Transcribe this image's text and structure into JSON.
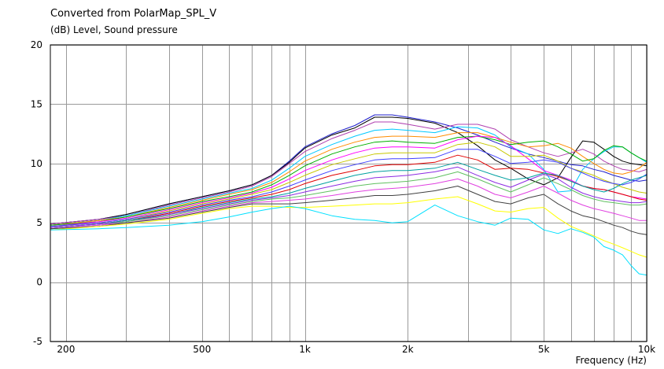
{
  "chart_data": {
    "type": "line",
    "title": "Converted from PolarMap_SPL_V",
    "ylabel": "(dB)  Level, Sound pressure",
    "xlabel": "Frequency  (Hz)",
    "x_scale": "log",
    "xlim": [
      180,
      10000
    ],
    "ylim": [
      -5,
      20
    ],
    "x_ticks": [
      {
        "value": 200,
        "label": "200"
      },
      {
        "value": 500,
        "label": "500"
      },
      {
        "value": 1000,
        "label": "1k"
      },
      {
        "value": 2000,
        "label": "2k"
      },
      {
        "value": 5000,
        "label": "5k"
      },
      {
        "value": 10000,
        "label": "10k"
      }
    ],
    "y_ticks": [
      {
        "value": 20,
        "label": "20"
      },
      {
        "value": 15,
        "label": "15"
      },
      {
        "value": 10,
        "label": "10"
      },
      {
        "value": 5,
        "label": "5"
      },
      {
        "value": 0,
        "label": "0"
      },
      {
        "value": -5,
        "label": "-5"
      }
    ],
    "grid": true,
    "x": [
      180,
      250,
      300,
      400,
      500,
      600,
      700,
      800,
      900,
      1000,
      1200,
      1400,
      1600,
      1800,
      2000,
      2400,
      2800,
      3200,
      3600,
      4000,
      4500,
      5000,
      5500,
      6000,
      6500,
      7000,
      7500,
      8000,
      8500,
      9000,
      9500,
      10000
    ],
    "series": [
      {
        "color": "#1f1fcc",
        "values": [
          4.9,
          5.3,
          5.7,
          6.6,
          7.2,
          7.7,
          8.2,
          9.0,
          10.2,
          11.4,
          12.5,
          13.2,
          14.1,
          14.1,
          13.9,
          13.5,
          13.0,
          12.4,
          11.8,
          11.3,
          10.8,
          10.5,
          10.2,
          9.9,
          9.8,
          9.5,
          9.3,
          9.0,
          8.8,
          8.6,
          8.5,
          8.6
        ]
      },
      {
        "color": "#000000",
        "values": [
          4.9,
          5.3,
          5.7,
          6.6,
          7.2,
          7.7,
          8.2,
          9.0,
          10.1,
          11.3,
          12.4,
          13.0,
          13.9,
          13.9,
          13.8,
          13.4,
          12.6,
          11.5,
          10.3,
          9.6,
          8.7,
          8.2,
          8.8,
          10.5,
          11.9,
          11.8,
          11.2,
          10.6,
          10.2,
          10.0,
          9.9,
          9.8
        ]
      },
      {
        "color": "#b040b0",
        "values": [
          4.9,
          5.3,
          5.6,
          6.5,
          7.1,
          7.6,
          8.1,
          8.9,
          10.0,
          11.0,
          12.1,
          12.8,
          13.5,
          13.5,
          13.3,
          12.9,
          13.3,
          13.3,
          12.9,
          12.0,
          11.4,
          10.9,
          10.6,
          10.9,
          11.2,
          10.8,
          10.2,
          9.8,
          9.5,
          9.4,
          9.3,
          9.5
        ]
      },
      {
        "color": "#00c8ff",
        "values": [
          4.8,
          5.2,
          5.6,
          6.4,
          7.0,
          7.5,
          7.9,
          8.6,
          9.6,
          10.6,
          11.6,
          12.3,
          12.8,
          12.9,
          12.8,
          12.6,
          13.1,
          13.0,
          12.4,
          11.4,
          10.8,
          9.5,
          7.6,
          7.7,
          9.5,
          10.4,
          11.0,
          11.4,
          11.4,
          10.9,
          10.5,
          10.1
        ]
      },
      {
        "color": "#ff8c00",
        "values": [
          4.8,
          5.2,
          5.5,
          6.3,
          6.9,
          7.4,
          7.8,
          8.4,
          9.3,
          10.2,
          11.2,
          11.8,
          12.2,
          12.3,
          12.3,
          12.2,
          12.6,
          12.6,
          12.2,
          11.8,
          11.4,
          11.5,
          11.7,
          11.3,
          10.6,
          10.0,
          9.5,
          9.2,
          9.1,
          9.3,
          9.6,
          10.1
        ]
      },
      {
        "color": "#00b000",
        "values": [
          4.8,
          5.1,
          5.5,
          6.2,
          6.8,
          7.2,
          7.6,
          8.2,
          9.0,
          9.8,
          10.8,
          11.4,
          11.8,
          11.9,
          11.8,
          11.7,
          12.2,
          12.3,
          12.0,
          11.6,
          11.8,
          11.9,
          11.4,
          10.8,
          10.2,
          10.4,
          11.1,
          11.5,
          11.4,
          10.9,
          10.5,
          10.2
        ]
      },
      {
        "color": "#ff00ff",
        "values": [
          4.7,
          5.1,
          5.4,
          6.1,
          6.7,
          7.1,
          7.5,
          8.0,
          8.7,
          9.4,
          10.3,
          10.9,
          11.3,
          11.4,
          11.4,
          11.3,
          12.0,
          12.3,
          12.2,
          11.5,
          10.4,
          9.4,
          9.0,
          8.6,
          8.1,
          7.9,
          7.8,
          7.6,
          7.4,
          7.2,
          7.1,
          7.0
        ]
      },
      {
        "color": "#c8c800",
        "values": [
          4.7,
          5.0,
          5.3,
          6.0,
          6.6,
          7.0,
          7.4,
          7.8,
          8.4,
          9.0,
          9.9,
          10.4,
          10.8,
          10.9,
          10.9,
          10.9,
          11.6,
          11.8,
          11.4,
          10.6,
          10.6,
          10.7,
          10.2,
          9.6,
          9.3,
          9.0,
          8.6,
          8.3,
          8.0,
          7.8,
          7.6,
          7.5
        ]
      },
      {
        "color": "#4040ff",
        "values": [
          4.7,
          5.0,
          5.3,
          5.9,
          6.5,
          6.9,
          7.2,
          7.6,
          8.1,
          8.6,
          9.4,
          9.9,
          10.3,
          10.4,
          10.4,
          10.5,
          11.2,
          11.2,
          10.6,
          10.0,
          10.1,
          10.3,
          10.1,
          9.6,
          9.2,
          8.8,
          8.5,
          8.3,
          8.2,
          8.4,
          8.7,
          9.1
        ]
      },
      {
        "color": "#e00000",
        "values": [
          4.6,
          4.9,
          5.2,
          5.8,
          6.4,
          6.8,
          7.1,
          7.4,
          7.8,
          8.3,
          9.0,
          9.4,
          9.8,
          9.9,
          9.9,
          10.1,
          10.7,
          10.3,
          9.5,
          9.6,
          9.5,
          9.2,
          8.9,
          8.5,
          8.1,
          7.9,
          7.8,
          7.6,
          7.4,
          7.2,
          7.0,
          6.9
        ]
      },
      {
        "color": "#00a0a0",
        "values": [
          4.6,
          4.9,
          5.2,
          5.7,
          6.3,
          6.7,
          7.0,
          7.2,
          7.5,
          7.9,
          8.5,
          9.0,
          9.3,
          9.4,
          9.4,
          9.6,
          10.1,
          9.5,
          9.0,
          8.6,
          8.8,
          9.2,
          9.0,
          8.5,
          8.1,
          7.8,
          7.6,
          7.9,
          8.3,
          8.6,
          8.8,
          9.0
        ]
      },
      {
        "color": "#8c2be2",
        "values": [
          4.6,
          4.9,
          5.1,
          5.7,
          6.2,
          6.6,
          6.9,
          7.1,
          7.3,
          7.6,
          8.1,
          8.5,
          8.8,
          8.9,
          9.0,
          9.3,
          9.7,
          9.0,
          8.4,
          8.0,
          8.6,
          9.1,
          8.7,
          8.0,
          7.5,
          7.2,
          7.0,
          6.9,
          6.8,
          6.7,
          6.7,
          6.8
        ]
      },
      {
        "color": "#60c060",
        "values": [
          4.5,
          4.8,
          5.1,
          5.6,
          6.1,
          6.5,
          6.8,
          7.0,
          7.1,
          7.3,
          7.7,
          8.1,
          8.3,
          8.4,
          8.5,
          8.8,
          9.3,
          8.7,
          8.1,
          7.6,
          8.2,
          8.8,
          8.3,
          7.8,
          7.3,
          7.0,
          6.8,
          6.7,
          6.6,
          6.5,
          6.5,
          6.6
        ]
      },
      {
        "color": "#e040e0",
        "values": [
          4.5,
          4.8,
          5.0,
          5.5,
          6.0,
          6.4,
          6.7,
          6.8,
          6.9,
          7.0,
          7.3,
          7.6,
          7.8,
          7.9,
          8.0,
          8.3,
          8.7,
          8.1,
          7.4,
          7.1,
          7.6,
          8.1,
          7.5,
          6.9,
          6.5,
          6.2,
          6.0,
          5.8,
          5.6,
          5.4,
          5.2,
          5.2
        ]
      },
      {
        "color": "#404040",
        "values": [
          4.5,
          4.7,
          5.0,
          5.4,
          5.9,
          6.3,
          6.6,
          6.6,
          6.6,
          6.7,
          6.9,
          7.1,
          7.3,
          7.3,
          7.4,
          7.7,
          8.1,
          7.4,
          6.8,
          6.6,
          7.1,
          7.4,
          6.6,
          6.0,
          5.6,
          5.4,
          5.1,
          4.8,
          4.6,
          4.3,
          4.1,
          4.0
        ]
      },
      {
        "color": "#ffff00",
        "values": [
          4.4,
          4.7,
          4.9,
          5.3,
          5.8,
          6.2,
          6.4,
          6.4,
          6.3,
          6.3,
          6.4,
          6.5,
          6.6,
          6.6,
          6.7,
          7.0,
          7.2,
          6.6,
          6.0,
          5.9,
          6.2,
          6.3,
          5.4,
          4.7,
          4.3,
          3.9,
          3.5,
          3.2,
          2.9,
          2.6,
          2.3,
          2.1
        ]
      },
      {
        "color": "#00e0ff",
        "values": [
          4.4,
          4.5,
          4.6,
          4.8,
          5.1,
          5.5,
          5.9,
          6.2,
          6.4,
          6.2,
          5.6,
          5.3,
          5.2,
          5.0,
          5.1,
          6.5,
          5.6,
          5.1,
          4.8,
          5.4,
          5.3,
          4.4,
          4.1,
          4.5,
          4.2,
          3.8,
          3.0,
          2.7,
          2.3,
          1.4,
          0.7,
          0.6
        ]
      }
    ]
  }
}
